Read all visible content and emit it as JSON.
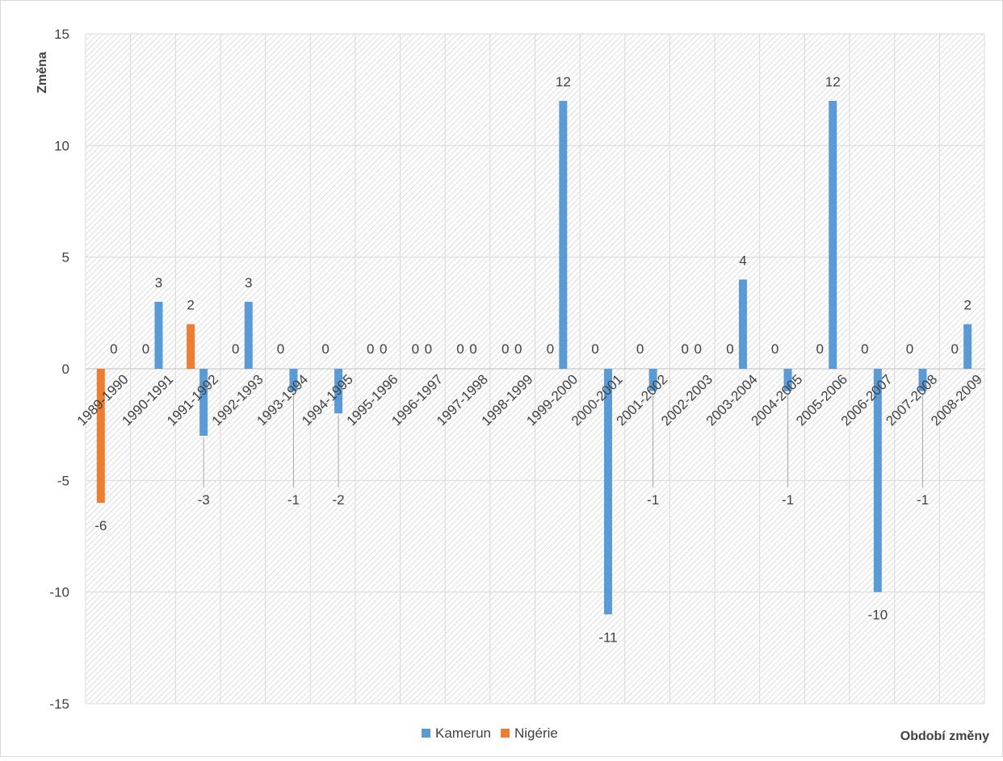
{
  "chart_data": {
    "type": "bar",
    "ylabel": "Změna",
    "xlabel": "Období změny",
    "ylim": [
      -15,
      15
    ],
    "yticks": [
      -15,
      -10,
      -5,
      0,
      5,
      10,
      15
    ],
    "grid": true,
    "legend_position": "bottom",
    "categories": [
      "1989-1990",
      "1990-1991",
      "1991-1992",
      "1992-1993",
      "1993-1994",
      "1994-1995",
      "1995-1996",
      "1996-1997",
      "1997-1998",
      "1998-1999",
      "1999-2000",
      "2000-2001",
      "2001-2002",
      "2002-2003",
      "2003-2004",
      "2004-2005",
      "2005-2006",
      "2006-2007",
      "2007-2008",
      "2008-2009"
    ],
    "series": [
      {
        "name": "Kamerun",
        "color": "#5B9BD5",
        "values": [
          0,
          3,
          -3,
          3,
          -1,
          -2,
          0,
          0,
          0,
          0,
          12,
          -11,
          -1,
          0,
          4,
          -1,
          12,
          -10,
          -1,
          2
        ]
      },
      {
        "name": "Nigérie",
        "color": "#ED7D31",
        "values": [
          -6,
          0,
          2,
          0,
          0,
          0,
          0,
          0,
          0,
          0,
          0,
          0,
          0,
          0,
          0,
          0,
          0,
          0,
          0,
          0
        ]
      }
    ]
  }
}
